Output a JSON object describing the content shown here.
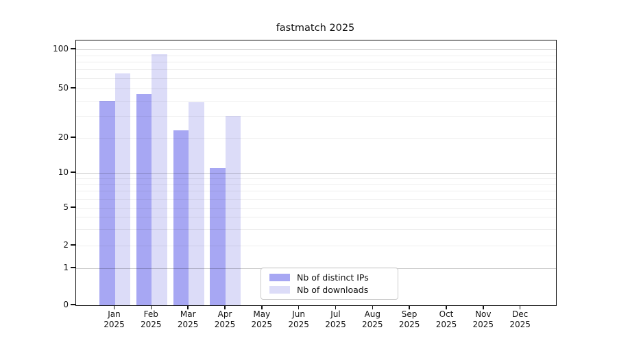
{
  "chart_data": {
    "type": "bar",
    "title": "fastmatch 2025",
    "y_axis": {
      "scale": "symlog",
      "tick_labels": [
        "0",
        "1",
        "2",
        "5",
        "10",
        "20",
        "50",
        "100"
      ],
      "tick_values": [
        0,
        1,
        2,
        5,
        10,
        20,
        50,
        100
      ],
      "minor_grid_values": [
        2,
        3,
        4,
        5,
        6,
        7,
        8,
        9,
        20,
        30,
        40,
        50,
        60,
        70,
        80,
        90
      ],
      "major_grid_values": [
        1,
        10,
        100
      ],
      "range": [
        0,
        115
      ]
    },
    "x_ticks": [
      {
        "label": "Jan",
        "sub": "2025"
      },
      {
        "label": "Feb",
        "sub": "2025"
      },
      {
        "label": "Mar",
        "sub": "2025"
      },
      {
        "label": "Apr",
        "sub": "2025"
      },
      {
        "label": "May",
        "sub": "2025"
      },
      {
        "label": "Jun",
        "sub": "2025"
      },
      {
        "label": "Jul",
        "sub": "2025"
      },
      {
        "label": "Aug",
        "sub": "2025"
      },
      {
        "label": "Sep",
        "sub": "2025"
      },
      {
        "label": "Oct",
        "sub": "2025"
      },
      {
        "label": "Nov",
        "sub": "2025"
      },
      {
        "label": "Dec",
        "sub": "2025"
      }
    ],
    "series": [
      {
        "name": "Nb of distinct IPs",
        "color": "#a7a7f3",
        "values": [
          40,
          45,
          23,
          11,
          0,
          0,
          0,
          0,
          0,
          0,
          0,
          0
        ]
      },
      {
        "name": "Nb of downloads",
        "color": "#dcdcf8",
        "values": [
          65,
          92,
          39,
          30,
          0,
          0,
          0,
          0,
          0,
          0,
          0,
          0
        ]
      }
    ],
    "grid": true,
    "legend_position": "lower center"
  }
}
